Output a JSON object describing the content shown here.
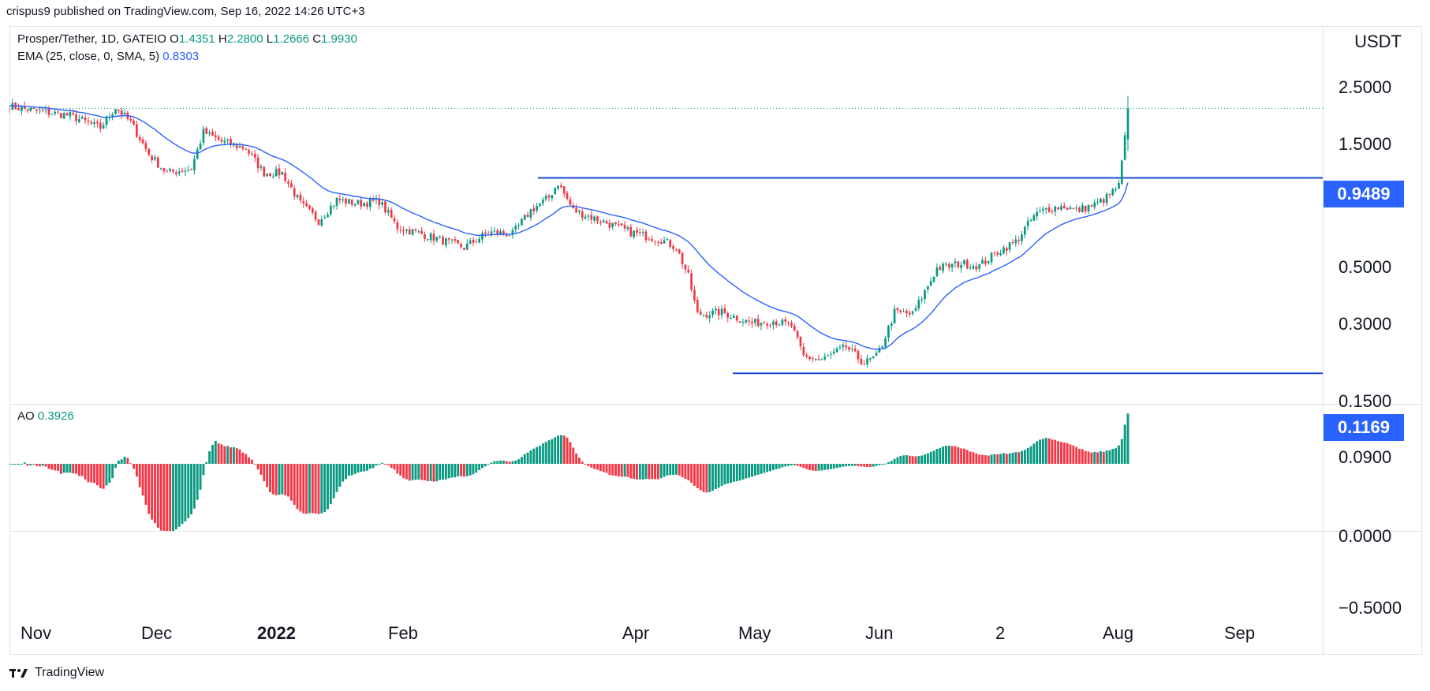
{
  "publisher_line": "crispus9 published on TradingView.com, Sep 16, 2022 14:26 UTC+3",
  "legend": {
    "symbol": "Prosper/Tether, 1D, GATEIO",
    "o_label": "O",
    "o": "1.4351",
    "h_label": "H",
    "h": "2.2800",
    "l_label": "L",
    "l": "1.2666",
    "c_label": "C",
    "c": "1.9930",
    "ema_label": "EMA (25, close, 0, SMA, 5)",
    "ema_value": "0.8303",
    "ao_label": "AO",
    "ao_value": "0.3926"
  },
  "price_axis": {
    "unit": "USDT",
    "ticks": [
      "2.5000",
      "1.5000",
      "0.5000",
      "0.3000",
      "0.1500",
      "0.0900"
    ],
    "badges": [
      "0.9489",
      "0.1169"
    ]
  },
  "ao_axis": {
    "ticks": [
      "0.0000",
      "−0.5000"
    ]
  },
  "time_axis": {
    "labels": [
      "Nov",
      "Dec",
      "2022",
      "Feb",
      "Apr",
      "May",
      "Jun",
      "2",
      "Aug",
      "Sep"
    ]
  },
  "brand": "TradingView",
  "colors": {
    "up": "#089981",
    "down": "#f23645",
    "ema": "#2962ff",
    "level": "#1848cc",
    "badge": "#2962ff"
  },
  "chart_data": {
    "type": "candlestick",
    "title": "Prosper/Tether, 1D, GATEIO",
    "y_scale": "log",
    "ylim": [
      0.085,
      3.3
    ],
    "horizontal_levels": [
      0.9489,
      0.1169
    ],
    "last_price": 1.993,
    "ohlc_last": {
      "open": 1.4351,
      "high": 2.28,
      "low": 1.2666,
      "close": 1.993
    },
    "ema_last": 0.8303,
    "ao_last": 0.3926,
    "ao_ylim": [
      -0.6,
      0.45
    ],
    "close_anchors": [
      [
        0,
        2.05
      ],
      [
        8,
        1.95
      ],
      [
        20,
        1.85
      ],
      [
        30,
        1.62
      ],
      [
        35,
        2.02
      ],
      [
        40,
        1.72
      ],
      [
        46,
        1.22
      ],
      [
        52,
        1.0
      ],
      [
        60,
        1.05
      ],
      [
        64,
        1.55
      ],
      [
        70,
        1.4
      ],
      [
        78,
        1.3
      ],
      [
        84,
        1.0
      ],
      [
        90,
        1.0
      ],
      [
        96,
        0.72
      ],
      [
        102,
        0.6
      ],
      [
        108,
        0.75
      ],
      [
        115,
        0.72
      ],
      [
        122,
        0.74
      ],
      [
        128,
        0.56
      ],
      [
        136,
        0.52
      ],
      [
        144,
        0.48
      ],
      [
        150,
        0.45
      ],
      [
        158,
        0.53
      ],
      [
        166,
        0.52
      ],
      [
        172,
        0.67
      ],
      [
        178,
        0.77
      ],
      [
        181,
        0.9
      ],
      [
        186,
        0.67
      ],
      [
        195,
        0.6
      ],
      [
        205,
        0.53
      ],
      [
        215,
        0.49
      ],
      [
        220,
        0.45
      ],
      [
        224,
        0.33
      ],
      [
        227,
        0.22
      ],
      [
        235,
        0.225
      ],
      [
        245,
        0.2
      ],
      [
        252,
        0.205
      ],
      [
        258,
        0.195
      ],
      [
        262,
        0.14
      ],
      [
        268,
        0.135
      ],
      [
        276,
        0.155
      ],
      [
        282,
        0.13
      ],
      [
        286,
        0.14
      ],
      [
        288,
        0.16
      ],
      [
        292,
        0.225
      ],
      [
        298,
        0.22
      ],
      [
        302,
        0.28
      ],
      [
        306,
        0.36
      ],
      [
        314,
        0.38
      ],
      [
        320,
        0.37
      ],
      [
        326,
        0.43
      ],
      [
        332,
        0.48
      ],
      [
        338,
        0.63
      ],
      [
        342,
        0.68
      ],
      [
        348,
        0.7
      ],
      [
        352,
        0.67
      ],
      [
        358,
        0.71
      ],
      [
        362,
        0.77
      ],
      [
        366,
        0.87
      ],
      [
        368,
        1.5
      ],
      [
        369,
        1.99
      ]
    ]
  }
}
